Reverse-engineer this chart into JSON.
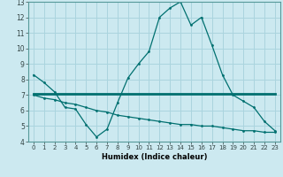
{
  "xlabel": "Humidex (Indice chaleur)",
  "x": [
    0,
    1,
    2,
    3,
    4,
    5,
    6,
    7,
    8,
    9,
    10,
    11,
    12,
    13,
    14,
    15,
    16,
    17,
    18,
    19,
    20,
    21,
    22,
    23
  ],
  "line1": [
    8.3,
    7.8,
    7.2,
    6.2,
    6.1,
    5.1,
    4.3,
    4.8,
    6.5,
    8.1,
    9.0,
    9.8,
    12.0,
    12.6,
    13.0,
    11.5,
    12.0,
    10.2,
    8.3,
    7.0,
    6.6,
    6.2,
    5.3,
    4.7
  ],
  "line2": [
    7.1,
    7.1,
    7.1,
    7.1,
    7.1,
    7.1,
    7.1,
    7.1,
    7.1,
    7.1,
    7.1,
    7.1,
    7.1,
    7.1,
    7.1,
    7.1,
    7.1,
    7.1,
    7.1,
    7.1,
    7.1,
    7.1,
    7.1,
    7.1
  ],
  "line3": [
    7.0,
    6.8,
    6.7,
    6.5,
    6.4,
    6.2,
    6.0,
    5.9,
    5.7,
    5.6,
    5.5,
    5.4,
    5.3,
    5.2,
    5.1,
    5.1,
    5.0,
    5.0,
    4.9,
    4.8,
    4.7,
    4.7,
    4.6,
    4.6
  ],
  "line_color": "#007070",
  "bg_color": "#cce9f0",
  "grid_color": "#aad4de",
  "ylim": [
    4,
    13
  ],
  "yticks": [
    4,
    5,
    6,
    7,
    8,
    9,
    10,
    11,
    12,
    13
  ],
  "xticks": [
    0,
    1,
    2,
    3,
    4,
    5,
    6,
    7,
    8,
    9,
    10,
    11,
    12,
    13,
    14,
    15,
    16,
    17,
    18,
    19,
    20,
    21,
    22,
    23
  ]
}
